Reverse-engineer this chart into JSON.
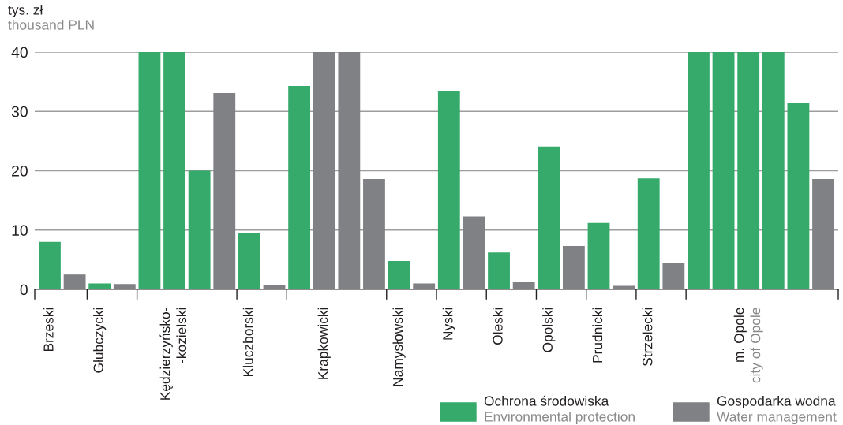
{
  "chart_data": {
    "type": "bar",
    "ylabel": "tys. zł\nthousand PLN",
    "categories": [
      "Brzeski",
      null,
      "Głubczycki",
      null,
      null,
      "Kędzierzyńsko-\n-kozielski",
      null,
      null,
      "Kluczborski",
      null,
      null,
      "Krapkowicki",
      null,
      null,
      "Namysłowski",
      null,
      "Nyski",
      null,
      "Oleski",
      null,
      "Opolski",
      null,
      "Prudnicki",
      null,
      "Strzelecki",
      null,
      null,
      null,
      "m. Opole\ncity of Opole",
      null,
      null,
      null
    ],
    "series": [
      {
        "name": "Ochrona środowiska\nEnvironmental protection",
        "color": "#35aa6b",
        "values": [
          8.0,
          null,
          1.0,
          null,
          40,
          40,
          20.0,
          null,
          9.5,
          null,
          34.3,
          null,
          null,
          null,
          4.8,
          null,
          33.5,
          null,
          6.2,
          null,
          24.1,
          null,
          11.2,
          null,
          18.7,
          null,
          40,
          40,
          40,
          40,
          31.4,
          null
        ]
      },
      {
        "name": "Gospodarka wodna\nWater management",
        "color": "#808184",
        "values": [
          null,
          2.5,
          null,
          0.9,
          null,
          null,
          null,
          33.1,
          null,
          0.7,
          null,
          40,
          40,
          18.6,
          null,
          1.0,
          null,
          12.3,
          null,
          1.2,
          null,
          7.3,
          null,
          0.6,
          null,
          4.4,
          null,
          null,
          null,
          null,
          null,
          18.6
        ]
      }
    ],
    "ylim": [
      0,
      40
    ],
    "yticks": [
      0,
      10,
      20,
      30,
      40
    ],
    "grid": "y",
    "legend": "bottom right"
  }
}
